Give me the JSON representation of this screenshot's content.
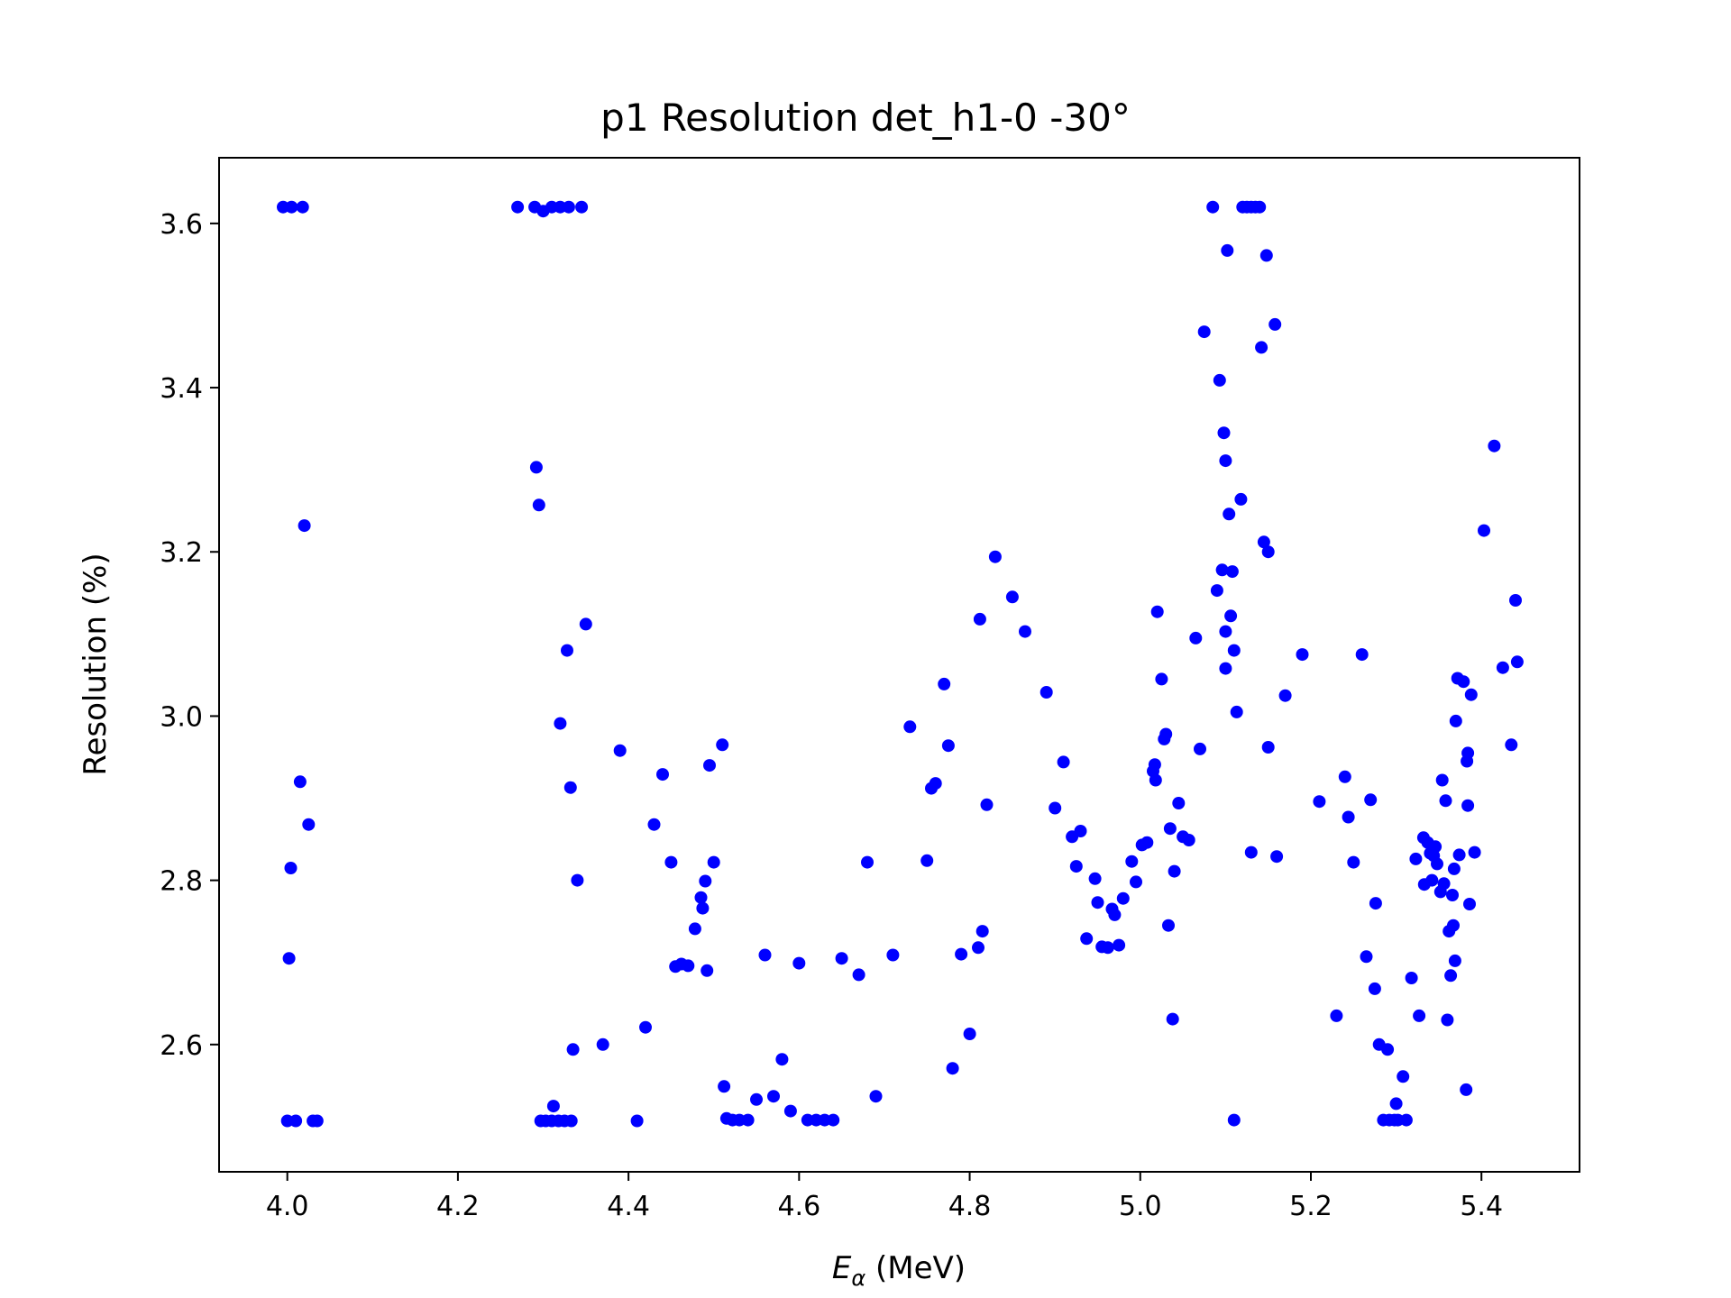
{
  "chart_data": {
    "type": "scatter",
    "title": "p1 Resolution det_h1-0    -30°",
    "xlabel_main": "E",
    "xlabel_sub": "α",
    "xlabel_rest": " (MeV)",
    "ylabel": "Resolution (%)",
    "xlim": [
      3.92,
      5.515
    ],
    "ylim": [
      2.445,
      3.68
    ],
    "xticks": [
      4.0,
      4.2,
      4.4,
      4.6,
      4.8,
      5.0,
      5.2,
      5.4
    ],
    "xtick_labels": [
      "4.0",
      "4.2",
      "4.4",
      "4.6",
      "4.8",
      "5.0",
      "5.2",
      "5.4"
    ],
    "yticks": [
      2.6,
      2.8,
      3.0,
      3.2,
      3.4,
      3.6
    ],
    "ytick_labels": [
      "2.6",
      "2.8",
      "3.0",
      "3.2",
      "3.4",
      "3.6"
    ],
    "grid": false,
    "marker_color": "#0000ff",
    "series": [
      {
        "points": [
          [
            3.995,
            3.62
          ],
          [
            4.005,
            3.62
          ],
          [
            4.018,
            3.62
          ],
          [
            4.0,
            2.507
          ],
          [
            4.01,
            2.507
          ],
          [
            4.03,
            2.507
          ],
          [
            4.035,
            2.507
          ],
          [
            4.002,
            2.705
          ],
          [
            4.004,
            2.815
          ],
          [
            4.015,
            2.92
          ],
          [
            4.02,
            3.232
          ],
          [
            4.025,
            2.868
          ],
          [
            4.27,
            3.62
          ],
          [
            4.29,
            3.62
          ],
          [
            4.3,
            3.615
          ],
          [
            4.31,
            3.62
          ],
          [
            4.32,
            3.62
          ],
          [
            4.33,
            3.62
          ],
          [
            4.345,
            3.62
          ],
          [
            4.292,
            3.303
          ],
          [
            4.295,
            3.257
          ],
          [
            4.297,
            2.507
          ],
          [
            4.303,
            2.507
          ],
          [
            4.31,
            2.507
          ],
          [
            4.318,
            2.507
          ],
          [
            4.325,
            2.507
          ],
          [
            4.333,
            2.507
          ],
          [
            4.312,
            2.525
          ],
          [
            4.32,
            2.991
          ],
          [
            4.328,
            3.08
          ],
          [
            4.332,
            2.913
          ],
          [
            4.335,
            2.594
          ],
          [
            4.34,
            2.8
          ],
          [
            4.35,
            3.112
          ],
          [
            4.37,
            2.6
          ],
          [
            4.39,
            2.958
          ],
          [
            4.41,
            2.507
          ],
          [
            4.42,
            2.621
          ],
          [
            4.43,
            2.868
          ],
          [
            4.44,
            2.929
          ],
          [
            4.45,
            2.822
          ],
          [
            4.455,
            2.695
          ],
          [
            4.462,
            2.698
          ],
          [
            4.47,
            2.696
          ],
          [
            4.478,
            2.741
          ],
          [
            4.485,
            2.779
          ],
          [
            4.487,
            2.766
          ],
          [
            4.49,
            2.799
          ],
          [
            4.492,
            2.69
          ],
          [
            4.495,
            2.94
          ],
          [
            4.5,
            2.822
          ],
          [
            4.51,
            2.965
          ],
          [
            4.512,
            2.549
          ],
          [
            4.515,
            2.51
          ],
          [
            4.522,
            2.508
          ],
          [
            4.53,
            2.508
          ],
          [
            4.54,
            2.508
          ],
          [
            4.55,
            2.533
          ],
          [
            4.56,
            2.709
          ],
          [
            4.57,
            2.537
          ],
          [
            4.58,
            2.582
          ],
          [
            4.59,
            2.519
          ],
          [
            4.6,
            2.699
          ],
          [
            4.61,
            2.508
          ],
          [
            4.62,
            2.508
          ],
          [
            4.63,
            2.508
          ],
          [
            4.64,
            2.508
          ],
          [
            4.65,
            2.705
          ],
          [
            4.67,
            2.685
          ],
          [
            4.68,
            2.822
          ],
          [
            4.69,
            2.537
          ],
          [
            4.71,
            2.709
          ],
          [
            4.73,
            2.987
          ],
          [
            4.75,
            2.824
          ],
          [
            4.755,
            2.912
          ],
          [
            4.76,
            2.918
          ],
          [
            4.77,
            3.039
          ],
          [
            4.775,
            2.964
          ],
          [
            4.78,
            2.571
          ],
          [
            4.79,
            2.71
          ],
          [
            4.8,
            2.613
          ],
          [
            4.81,
            2.718
          ],
          [
            4.812,
            3.118
          ],
          [
            4.815,
            2.738
          ],
          [
            4.82,
            2.892
          ],
          [
            4.83,
            3.194
          ],
          [
            4.85,
            3.145
          ],
          [
            4.865,
            3.103
          ],
          [
            4.89,
            3.029
          ],
          [
            4.9,
            2.888
          ],
          [
            4.91,
            2.944
          ],
          [
            4.92,
            2.853
          ],
          [
            4.925,
            2.817
          ],
          [
            4.93,
            2.86
          ],
          [
            4.937,
            2.729
          ],
          [
            4.947,
            2.802
          ],
          [
            4.95,
            2.773
          ],
          [
            4.955,
            2.719
          ],
          [
            4.962,
            2.718
          ],
          [
            4.967,
            2.765
          ],
          [
            4.97,
            2.758
          ],
          [
            4.975,
            2.721
          ],
          [
            4.98,
            2.778
          ],
          [
            4.99,
            2.823
          ],
          [
            4.995,
            2.798
          ],
          [
            5.002,
            2.843
          ],
          [
            5.008,
            2.846
          ],
          [
            5.015,
            2.933
          ],
          [
            5.017,
            2.941
          ],
          [
            5.018,
            2.922
          ],
          [
            5.02,
            3.127
          ],
          [
            5.025,
            3.045
          ],
          [
            5.028,
            2.972
          ],
          [
            5.03,
            2.978
          ],
          [
            5.033,
            2.745
          ],
          [
            5.035,
            2.863
          ],
          [
            5.038,
            2.631
          ],
          [
            5.04,
            2.811
          ],
          [
            5.045,
            2.894
          ],
          [
            5.05,
            2.853
          ],
          [
            5.057,
            2.849
          ],
          [
            5.065,
            3.095
          ],
          [
            5.07,
            2.96
          ],
          [
            5.075,
            3.468
          ],
          [
            5.085,
            3.62
          ],
          [
            5.09,
            3.153
          ],
          [
            5.093,
            3.409
          ],
          [
            5.096,
            3.178
          ],
          [
            5.098,
            3.345
          ],
          [
            5.1,
            3.311
          ],
          [
            5.1,
            3.103
          ],
          [
            5.1,
            3.058
          ],
          [
            5.102,
            3.567
          ],
          [
            5.104,
            3.246
          ],
          [
            5.106,
            3.122
          ],
          [
            5.108,
            3.176
          ],
          [
            5.11,
            3.08
          ],
          [
            5.11,
            2.508
          ],
          [
            5.113,
            3.005
          ],
          [
            5.118,
            3.264
          ],
          [
            5.12,
            3.62
          ],
          [
            5.125,
            3.62
          ],
          [
            5.13,
            3.62
          ],
          [
            5.135,
            3.62
          ],
          [
            5.14,
            3.62
          ],
          [
            5.13,
            2.834
          ],
          [
            5.142,
            3.449
          ],
          [
            5.145,
            3.212
          ],
          [
            5.148,
            3.561
          ],
          [
            5.15,
            3.2
          ],
          [
            5.15,
            2.962
          ],
          [
            5.158,
            3.477
          ],
          [
            5.16,
            2.829
          ],
          [
            5.17,
            3.025
          ],
          [
            5.19,
            3.075
          ],
          [
            5.21,
            2.896
          ],
          [
            5.23,
            2.635
          ],
          [
            5.24,
            2.926
          ],
          [
            5.244,
            2.877
          ],
          [
            5.25,
            2.822
          ],
          [
            5.26,
            3.075
          ],
          [
            5.265,
            2.707
          ],
          [
            5.27,
            2.898
          ],
          [
            5.275,
            2.668
          ],
          [
            5.276,
            2.772
          ],
          [
            5.28,
            2.6
          ],
          [
            5.285,
            2.508
          ],
          [
            5.29,
            2.594
          ],
          [
            5.292,
            2.508
          ],
          [
            5.298,
            2.508
          ],
          [
            5.3,
            2.528
          ],
          [
            5.302,
            2.508
          ],
          [
            5.308,
            2.561
          ],
          [
            5.312,
            2.508
          ],
          [
            5.318,
            2.681
          ],
          [
            5.323,
            2.826
          ],
          [
            5.327,
            2.635
          ],
          [
            5.332,
            2.852
          ],
          [
            5.333,
            2.795
          ],
          [
            5.337,
            2.846
          ],
          [
            5.34,
            2.833
          ],
          [
            5.342,
            2.8
          ],
          [
            5.344,
            2.83
          ],
          [
            5.346,
            2.841
          ],
          [
            5.348,
            2.82
          ],
          [
            5.352,
            2.786
          ],
          [
            5.354,
            2.922
          ],
          [
            5.356,
            2.796
          ],
          [
            5.358,
            2.897
          ],
          [
            5.36,
            2.63
          ],
          [
            5.362,
            2.738
          ],
          [
            5.364,
            2.684
          ],
          [
            5.366,
            2.782
          ],
          [
            5.367,
            2.745
          ],
          [
            5.368,
            2.814
          ],
          [
            5.369,
            2.702
          ],
          [
            5.37,
            2.994
          ],
          [
            5.372,
            3.046
          ],
          [
            5.374,
            2.831
          ],
          [
            5.379,
            3.042
          ],
          [
            5.382,
            2.545
          ],
          [
            5.383,
            2.945
          ],
          [
            5.384,
            2.955
          ],
          [
            5.384,
            2.891
          ],
          [
            5.386,
            2.771
          ],
          [
            5.388,
            3.026
          ],
          [
            5.392,
            2.834
          ],
          [
            5.403,
            3.226
          ],
          [
            5.415,
            3.329
          ],
          [
            5.425,
            3.059
          ],
          [
            5.435,
            2.965
          ],
          [
            5.44,
            3.141
          ],
          [
            5.442,
            3.066
          ]
        ]
      }
    ]
  }
}
